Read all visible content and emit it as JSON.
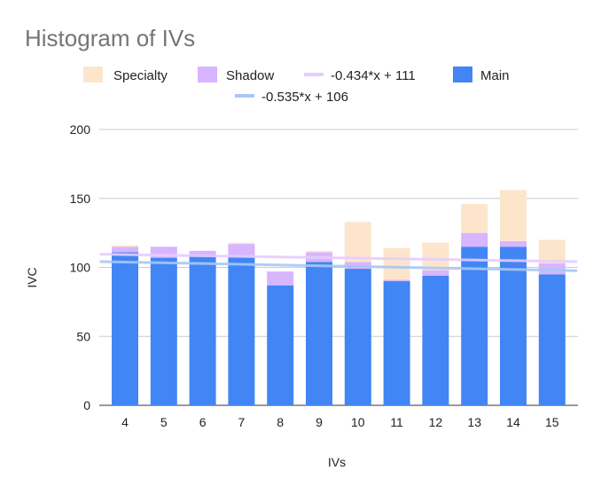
{
  "chart_data": {
    "type": "bar",
    "title": "Histogram of IVs",
    "xlabel": "IVs",
    "ylabel": "IVC",
    "categories": [
      "4",
      "5",
      "6",
      "7",
      "8",
      "9",
      "10",
      "11",
      "12",
      "13",
      "14",
      "15"
    ],
    "ylim": [
      0,
      200
    ],
    "yticks": [
      "0",
      "50",
      "100",
      "150",
      "200"
    ],
    "stacked": true,
    "grid": true,
    "legend_position": "top",
    "series": [
      {
        "name": "Main",
        "color": "#4285f4",
        "values": [
          111,
          107,
          109,
          108,
          87,
          104,
          99,
          90,
          94,
          115,
          115,
          95
        ]
      },
      {
        "name": "Shadow",
        "color": "#d7b5ff",
        "values": [
          4,
          8,
          3,
          9,
          10,
          7,
          5,
          1,
          4,
          10,
          4,
          8
        ]
      },
      {
        "name": "Specialty",
        "color": "#fde5cc",
        "values": [
          1,
          0,
          0,
          1,
          0,
          1,
          29,
          23,
          20,
          21,
          37,
          17
        ]
      }
    ],
    "trendlines": [
      {
        "name": "-0.434*x + 111",
        "color": "#e6ccff",
        "slope": -0.434,
        "intercept": 111
      },
      {
        "name": "-0.535*x + 106",
        "color": "#a8c7f5",
        "slope": -0.535,
        "intercept": 106
      }
    ],
    "legend_order": [
      "Specialty",
      "Shadow",
      "-0.434*x + 111",
      "Main",
      "-0.535*x + 106"
    ]
  }
}
